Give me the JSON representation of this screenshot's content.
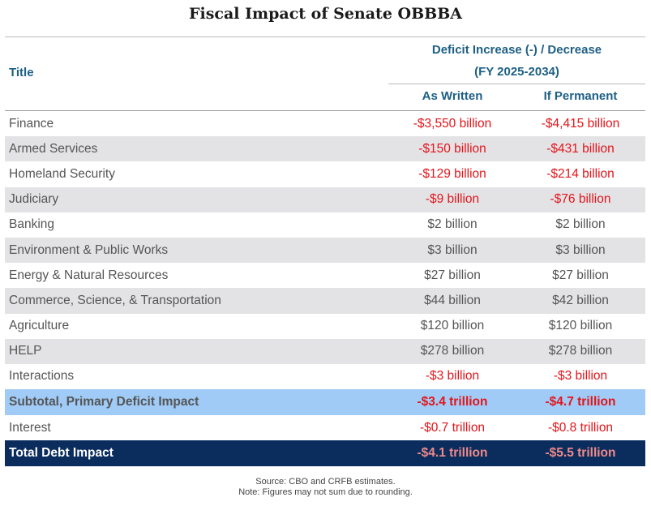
{
  "title": "Fiscal Impact of Senate OBBBA",
  "header": {
    "title_col": "Title",
    "group_line1": "Deficit Increase (-) / Decrease",
    "group_line2": "(FY 2025-2034)",
    "col1": "As Written",
    "col2": "If Permanent"
  },
  "rows": [
    {
      "label": "Finance",
      "as_written": "-$3,550 billion",
      "if_permanent": "-$4,415 billion"
    },
    {
      "label": "Armed Services",
      "as_written": "-$150 billion",
      "if_permanent": "-$431 billion"
    },
    {
      "label": "Homeland Security",
      "as_written": "-$129 billion",
      "if_permanent": "-$214 billion"
    },
    {
      "label": "Judiciary",
      "as_written": "-$9 billion",
      "if_permanent": "-$76 billion"
    },
    {
      "label": "Banking",
      "as_written": "$2 billion",
      "if_permanent": "$2 billion"
    },
    {
      "label": "Environment & Public Works",
      "as_written": "$3 billion",
      "if_permanent": "$3 billion"
    },
    {
      "label": "Energy & Natural Resources",
      "as_written": "$27 billion",
      "if_permanent": "$27 billion"
    },
    {
      "label": "Commerce, Science, & Transportation",
      "as_written": "$44 billion",
      "if_permanent": "$42 billion"
    },
    {
      "label": "Agriculture",
      "as_written": "$120 billion",
      "if_permanent": "$120 billion"
    },
    {
      "label": "HELP",
      "as_written": "$278 billion",
      "if_permanent": "$278 billion"
    },
    {
      "label": "Interactions",
      "as_written": "-$3 billion",
      "if_permanent": "-$3 billion"
    }
  ],
  "subtotal": {
    "label": "Subtotal, Primary Deficit Impact",
    "as_written": "-$3.4 trillion",
    "if_permanent": "-$4.7 trillion"
  },
  "interest": {
    "label": "Interest",
    "as_written": "-$0.7 trillion",
    "if_permanent": "-$0.8 trillion"
  },
  "total": {
    "label": "Total Debt Impact",
    "as_written": "-$4.1 trillion",
    "if_permanent": "-$5.5 trillion"
  },
  "notes": {
    "source": "Source: CBO and CRFB estimates.",
    "note": "Note: Figures may not sum due to rounding."
  },
  "colors": {
    "header_text": "#1d5f86",
    "negative": "#e3151a",
    "stripe": "#e3e3e6",
    "subtotal_bg": "#9fcbf6",
    "total_bg": "#0b2d5e"
  }
}
